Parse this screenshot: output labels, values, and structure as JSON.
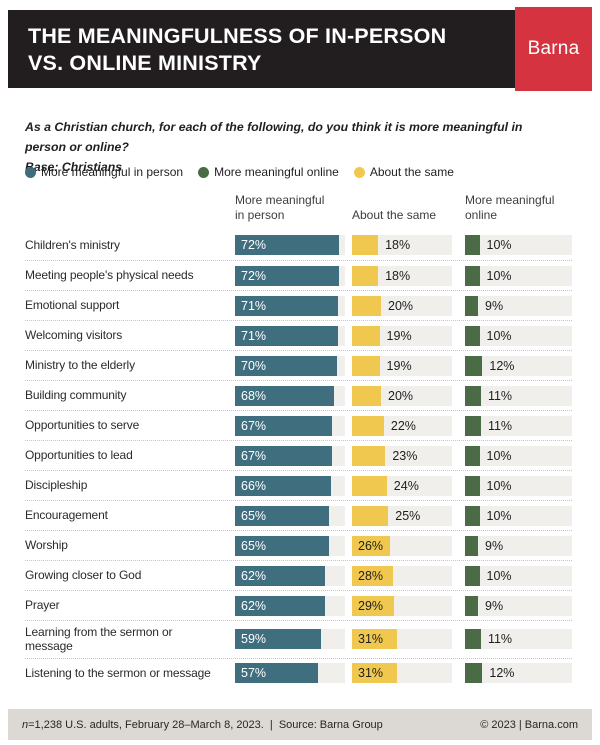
{
  "header": {
    "title": "THE MEANINGFULNESS OF IN-PERSON\nVS. ONLINE MINISTRY",
    "brand": "Barna",
    "brand_color": "#d5333f",
    "bar_color": "#221e1f"
  },
  "subtitle": {
    "question": "As a Christian church, for each of the following, do you think it is more meaningful in\nperson or online?",
    "base": "Base: Christians"
  },
  "legend": {
    "items": [
      {
        "label": "More meaningful in person",
        "color": "#3f6e7e"
      },
      {
        "label": "More meaningful online",
        "color": "#4a6b45"
      },
      {
        "label": "About the same",
        "color": "#f1c84f"
      }
    ]
  },
  "chart_data": {
    "type": "bar",
    "orientation": "horizontal",
    "unit": "%",
    "track_color": "#f1efec",
    "value_range": [
      0,
      75
    ],
    "columns": [
      {
        "key": "in_person",
        "header": "More meaningful\nin person",
        "color": "#3f6e7e"
      },
      {
        "key": "about_same",
        "header": "About the same",
        "color": "#f1c84f"
      },
      {
        "key": "online",
        "header": "More meaningful\nonline",
        "color": "#4a6b45"
      }
    ],
    "rows": [
      {
        "category": "Children's ministry",
        "in_person": 72,
        "about_same": 18,
        "online": 10
      },
      {
        "category": "Meeting people's physical needs",
        "in_person": 72,
        "about_same": 18,
        "online": 10
      },
      {
        "category": "Emotional support",
        "in_person": 71,
        "about_same": 20,
        "online": 9
      },
      {
        "category": "Welcoming visitors",
        "in_person": 71,
        "about_same": 19,
        "online": 10
      },
      {
        "category": "Ministry to the elderly",
        "in_person": 70,
        "about_same": 19,
        "online": 12
      },
      {
        "category": "Building community",
        "in_person": 68,
        "about_same": 20,
        "online": 11
      },
      {
        "category": "Opportunities to serve",
        "in_person": 67,
        "about_same": 22,
        "online": 11
      },
      {
        "category": "Opportunities to lead",
        "in_person": 67,
        "about_same": 23,
        "online": 10
      },
      {
        "category": "Discipleship",
        "in_person": 66,
        "about_same": 24,
        "online": 10
      },
      {
        "category": "Encouragement",
        "in_person": 65,
        "about_same": 25,
        "online": 10
      },
      {
        "category": "Worship",
        "in_person": 65,
        "about_same": 26,
        "online": 9
      },
      {
        "category": "Growing closer to God",
        "in_person": 62,
        "about_same": 28,
        "online": 10
      },
      {
        "category": "Prayer",
        "in_person": 62,
        "about_same": 29,
        "online": 9
      },
      {
        "category": "Learning from the sermon or\nmessage",
        "in_person": 59,
        "about_same": 31,
        "online": 11
      },
      {
        "category": "Listening to the sermon or message",
        "in_person": 57,
        "about_same": 31,
        "online": 12
      }
    ],
    "title": "THE MEANINGFULNESS OF IN-PERSON VS. ONLINE MINISTRY"
  },
  "footer": {
    "sample_italic": "n",
    "sample_rest": "=1,238 U.S. adults, February 28–March 8, 2023.",
    "divider": "|",
    "source": "Source: Barna Group",
    "copyright": "© 2023 | Barna.com"
  }
}
